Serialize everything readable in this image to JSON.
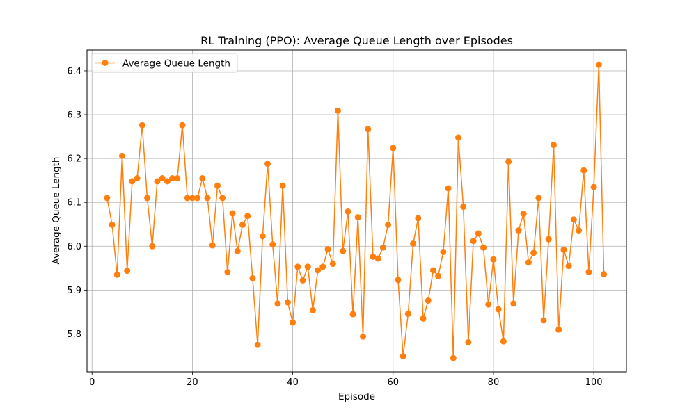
{
  "chart_data": {
    "type": "line",
    "title": "RL Training (PPO): Average Queue Length over Episodes",
    "xlabel": "Episode",
    "ylabel": "Average Queue Length",
    "xlim": [
      -1.0,
      106.5
    ],
    "ylim": [
      5.7135,
      6.4475
    ],
    "xticks": [
      0,
      20,
      40,
      60,
      80,
      100
    ],
    "yticks": [
      5.8,
      5.9,
      6.0,
      6.1,
      6.2,
      6.3,
      6.4
    ],
    "xtick_labels": [
      "0",
      "20",
      "40",
      "60",
      "80",
      "100"
    ],
    "ytick_labels": [
      "5.8",
      "5.9",
      "6.0",
      "6.1",
      "6.2",
      "6.3",
      "6.4"
    ],
    "grid": true,
    "legend": {
      "position": "top-left"
    },
    "series": [
      {
        "name": "Average Queue Length",
        "color": "#ff7f0e",
        "marker": "circle",
        "x": [
          3,
          4,
          5,
          6,
          7,
          8,
          9,
          10,
          11,
          12,
          13,
          14,
          15,
          16,
          17,
          18,
          19,
          20,
          21,
          22,
          23,
          24,
          25,
          26,
          27,
          28,
          29,
          30,
          31,
          32,
          33,
          34,
          35,
          36,
          37,
          38,
          39,
          40,
          41,
          42,
          43,
          44,
          45,
          46,
          47,
          48,
          49,
          50,
          51,
          52,
          53,
          54,
          55,
          56,
          57,
          58,
          59,
          60,
          61,
          62,
          63,
          64,
          65,
          66,
          67,
          68,
          69,
          70,
          71,
          72,
          73,
          74,
          75,
          76,
          77,
          78,
          79,
          80,
          81,
          82,
          83,
          84,
          85,
          86,
          87,
          88,
          89,
          90,
          91,
          92,
          93,
          94,
          95,
          96,
          97,
          98,
          99,
          100,
          101,
          102
        ],
        "y": [
          6.11,
          6.049,
          5.935,
          6.206,
          5.944,
          6.148,
          6.155,
          6.276,
          6.11,
          6.0,
          6.148,
          6.155,
          6.148,
          6.155,
          6.155,
          6.276,
          6.11,
          6.11,
          6.11,
          6.155,
          6.11,
          6.002,
          6.138,
          6.11,
          5.941,
          6.075,
          5.989,
          6.049,
          6.069,
          5.927,
          5.775,
          6.023,
          6.188,
          6.004,
          5.869,
          6.138,
          5.872,
          5.826,
          5.953,
          5.922,
          5.953,
          5.854,
          5.945,
          5.953,
          5.993,
          5.96,
          6.309,
          5.989,
          6.079,
          5.845,
          6.066,
          5.794,
          6.267,
          5.976,
          5.972,
          5.997,
          6.049,
          6.224,
          5.923,
          5.749,
          5.846,
          6.006,
          6.064,
          5.835,
          5.876,
          5.945,
          5.932,
          5.987,
          6.132,
          5.745,
          6.248,
          6.09,
          5.781,
          6.012,
          6.029,
          5.997,
          5.867,
          5.97,
          5.856,
          5.783,
          6.193,
          5.869,
          6.036,
          6.074,
          5.963,
          5.985,
          6.11,
          5.831,
          6.016,
          6.231,
          5.81,
          5.992,
          5.955,
          6.061,
          6.036,
          6.173,
          5.941,
          6.135,
          6.414,
          5.936
        ]
      }
    ]
  }
}
